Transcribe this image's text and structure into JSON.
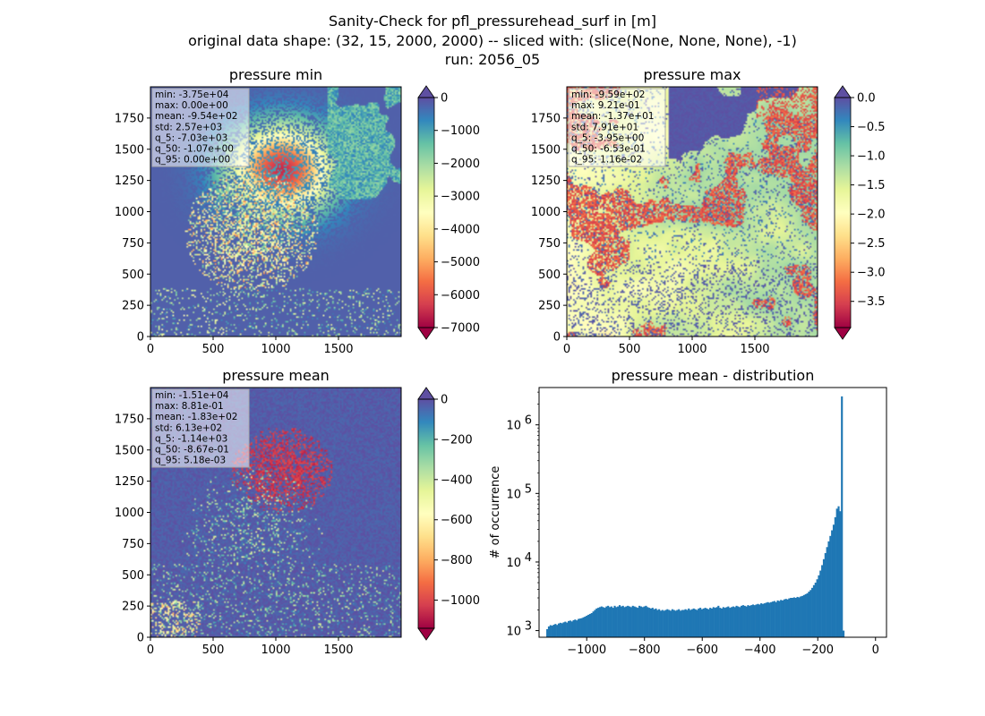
{
  "figure": {
    "title_lines": [
      "Sanity-Check for pfl_pressurehead_surf in [m]",
      "original data shape: (32, 15, 2000, 2000) -- sliced with: (slice(None, None, None), -1)",
      "run: 2056_05"
    ]
  },
  "chart_data": [
    {
      "type": "heatmap",
      "title": "pressure min",
      "colormap": "Spectral",
      "xticks": [
        0,
        500,
        1000,
        1500
      ],
      "yticks": [
        0,
        250,
        500,
        750,
        1000,
        1250,
        1500,
        1750
      ],
      "xlim": [
        0,
        2000
      ],
      "ylim": [
        0,
        2000
      ],
      "colorbar": {
        "vmin": -7000,
        "vmax": 0,
        "ticks": [
          0,
          -1000,
          -2000,
          -3000,
          -4000,
          -5000,
          -6000,
          -7000
        ],
        "tick_labels": [
          "0",
          "−1000",
          "−2000",
          "−3000",
          "−4000",
          "−5000",
          "−6000",
          "−7000"
        ],
        "extend": "both"
      },
      "stats": [
        "min: -3.75e+04",
        "max: 0.00e+00",
        "mean: -9.54e+02",
        "std: 2.57e+03",
        "q_5: -7.03e+03",
        "q_50: -1.07e+00",
        "q_95: 0.00e+00"
      ]
    },
    {
      "type": "heatmap",
      "title": "pressure max",
      "colormap": "Spectral",
      "xticks": [
        0,
        500,
        1000,
        1500
      ],
      "yticks": [
        0,
        250,
        500,
        750,
        1000,
        1250,
        1500,
        1750
      ],
      "xlim": [
        0,
        2000
      ],
      "ylim": [
        0,
        2000
      ],
      "colorbar": {
        "vmin": -3.95,
        "vmax": 0.0,
        "ticks": [
          0.0,
          -0.5,
          -1.0,
          -1.5,
          -2.0,
          -2.5,
          -3.0,
          -3.5
        ],
        "tick_labels": [
          "0.0",
          "−0.5",
          "−1.0",
          "−1.5",
          "−2.0",
          "−2.5",
          "−3.0",
          "−3.5"
        ],
        "extend": "both"
      },
      "stats": [
        "min: -9.59e+02",
        "max: 9.21e-01",
        "mean: -1.37e+01",
        "std: 7.91e+01",
        "q_5: -3.95e+00",
        "q_50: -6.53e-01",
        "q_95: 1.16e-02"
      ]
    },
    {
      "type": "heatmap",
      "title": "pressure mean",
      "colormap": "Spectral",
      "xticks": [
        0,
        500,
        1000,
        1500
      ],
      "yticks": [
        0,
        250,
        500,
        750,
        1000,
        1250,
        1500,
        1750
      ],
      "xlim": [
        0,
        2000
      ],
      "ylim": [
        0,
        2000
      ],
      "colorbar": {
        "vmin": -1140,
        "vmax": 0,
        "ticks": [
          0,
          -200,
          -400,
          -600,
          -800,
          -1000
        ],
        "tick_labels": [
          "0",
          "−200",
          "−400",
          "−600",
          "−800",
          "−1000"
        ],
        "extend": "both"
      },
      "stats": [
        "min: -1.51e+04",
        "max: 8.81e-01",
        "mean: -1.83e+02",
        "std: 6.13e+02",
        "q_5: -1.14e+03",
        "q_50: -8.67e-01",
        "q_95: 5.18e-03"
      ]
    },
    {
      "type": "bar",
      "title": "pressure mean - distribution",
      "ylabel": "# of occurrence",
      "yscale": "log",
      "ylim": [
        800,
        3500000
      ],
      "xlim": [
        -1165,
        38
      ],
      "xticks": [
        -1000,
        -800,
        -600,
        -400,
        -200,
        0
      ],
      "xtick_labels": [
        "−1000",
        "−800",
        "−600",
        "−400",
        "−200",
        "0"
      ],
      "yticks": [
        1000,
        10000,
        100000,
        1000000
      ],
      "ytick_labels": [
        "10^3",
        "10^4",
        "10^5",
        "10^6"
      ],
      "bar_color": "#1f77b4",
      "bins": {
        "start": -1140,
        "step": 5.7
      },
      "counts": [
        1050,
        1150,
        1200,
        1180,
        1220,
        1250,
        1210,
        1270,
        1300,
        1280,
        1320,
        1350,
        1310,
        1380,
        1400,
        1360,
        1420,
        1450,
        1410,
        1480,
        1500,
        1520,
        1560,
        1600,
        1650,
        1700,
        1750,
        1800,
        1900,
        2000,
        2100,
        2150,
        2200,
        2250,
        2200,
        2150,
        2250,
        2300,
        2200,
        2250,
        2150,
        2300,
        2200,
        2250,
        2350,
        2250,
        2300,
        2200,
        2250,
        2300,
        2250,
        2200,
        2300,
        2250,
        2200,
        2150,
        2300,
        2250,
        2200,
        2250,
        2300,
        2200,
        2150,
        2100,
        2150,
        2050,
        2100,
        2000,
        2050,
        1950,
        2000,
        1950,
        2000,
        2050,
        2000,
        1950,
        2050,
        2000,
        1950,
        2000,
        2050,
        1950,
        2000,
        2000,
        2050,
        2000,
        2100,
        2000,
        2050,
        2100,
        2050,
        2000,
        2100,
        2150,
        2050,
        2100,
        2150,
        2100,
        2050,
        2150,
        2100,
        2200,
        2150,
        2200,
        2300,
        2150,
        2100,
        2200,
        2150,
        2200,
        2250,
        2150,
        2200,
        2250,
        2200,
        2300,
        2250,
        2200,
        2300,
        2350,
        2300,
        2250,
        2350,
        2300,
        2350,
        2400,
        2350,
        2400,
        2450,
        2400,
        2500,
        2450,
        2500,
        2550,
        2600,
        2550,
        2600,
        2650,
        2700,
        2600,
        2750,
        2700,
        2800,
        2750,
        2850,
        2900,
        2850,
        2950,
        3000,
        3000,
        3050,
        3000,
        3100,
        3050,
        3150,
        3200,
        3300,
        3400,
        3500,
        3700,
        3900,
        4200,
        4600,
        5000,
        5600,
        6400,
        7500,
        9000,
        11000,
        13500,
        16500,
        20000,
        24000,
        29000,
        35000,
        45000,
        60000,
        65000,
        55000,
        2600000,
        1000
      ]
    }
  ]
}
